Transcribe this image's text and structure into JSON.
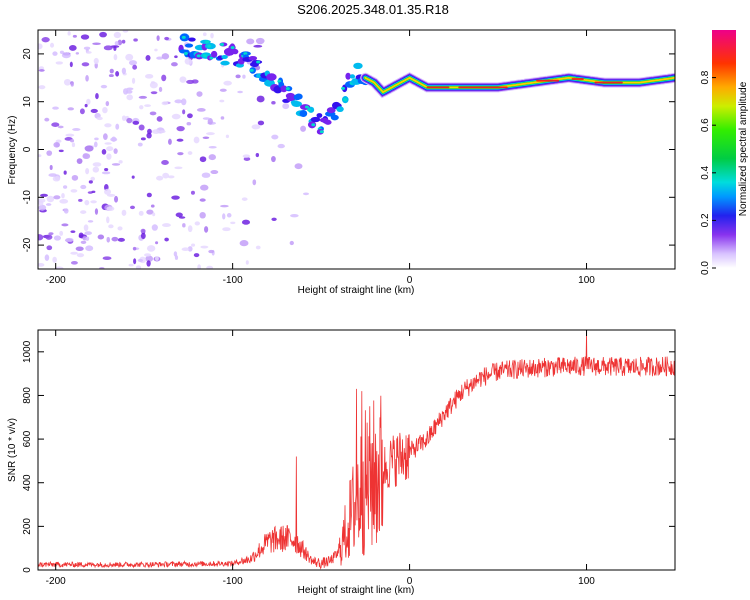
{
  "title": "S206.2025.348.01.35.R18",
  "colors": {
    "snr_line": "#ee3333",
    "frame": "#000000",
    "spectrum_dots": "#7722ee"
  },
  "chart_data": [
    {
      "type": "heatmap",
      "name": "spectrogram",
      "xlabel": "Height of straight line (km)",
      "ylabel": "Frequency (Hz)",
      "xlim": [
        -210,
        150
      ],
      "ylim": [
        -25,
        25
      ],
      "xticks": [
        -200,
        -100,
        0,
        100
      ],
      "yticks": [
        -20,
        -10,
        0,
        10,
        20
      ],
      "colorbar": {
        "label": "Normalized spectral amplitude",
        "range": [
          0,
          1
        ],
        "ticks": [
          0.0,
          0.2,
          0.4,
          0.6,
          0.8
        ],
        "tick_labels": [
          "0.0",
          "0.2",
          "0.4",
          "0.6",
          "0.8"
        ]
      },
      "dominant_line": {
        "description": "tone frequency vs height",
        "x": [
          -130,
          -110,
          -90,
          -75,
          -60,
          -50,
          -40,
          -35,
          -30,
          -25,
          -20,
          -15,
          -10,
          0,
          10,
          30,
          50,
          70,
          90,
          110,
          130,
          150
        ],
        "y": [
          22,
          21,
          18,
          13,
          9,
          5,
          8,
          14,
          16,
          15,
          14,
          12,
          13,
          15,
          13,
          13,
          13,
          14,
          15,
          14,
          14,
          15
        ]
      }
    },
    {
      "type": "line",
      "name": "snr",
      "xlabel": "Height of straight line (km)",
      "ylabel": "SNR (10 * v/v)",
      "xlim": [
        -210,
        150
      ],
      "ylim": [
        0,
        1100
      ],
      "xticks": [
        -200,
        -100,
        0,
        100
      ],
      "yticks": [
        0,
        200,
        400,
        600,
        800,
        1000
      ],
      "trend": {
        "x": [
          -210,
          -150,
          -100,
          -90,
          -85,
          -80,
          -75,
          -70,
          -65,
          -60,
          -55,
          -50,
          -45,
          -40,
          -35,
          -30,
          -25,
          -20,
          -15,
          -10,
          -5,
          0,
          10,
          20,
          30,
          40,
          50,
          60,
          80,
          100,
          120,
          150
        ],
        "y": [
          25,
          25,
          30,
          50,
          90,
          130,
          140,
          145,
          140,
          90,
          40,
          30,
          40,
          80,
          200,
          320,
          400,
          430,
          460,
          500,
          520,
          540,
          600,
          720,
          820,
          880,
          910,
          920,
          930,
          935,
          930,
          935
        ]
      },
      "peaks": [
        {
          "x": -64,
          "y": 520
        },
        {
          "x": -30,
          "y": 830
        },
        {
          "x": -27,
          "y": 820
        },
        {
          "x": 100,
          "y": 1090
        }
      ]
    }
  ]
}
